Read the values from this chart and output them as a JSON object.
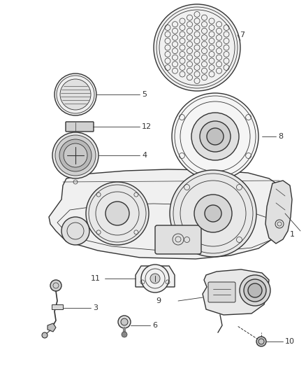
{
  "bg_color": "#ffffff",
  "line_color": "#333333",
  "lw_main": 1.0,
  "lw_thin": 0.6,
  "fig_width": 4.38,
  "fig_height": 5.33,
  "dpi": 100
}
